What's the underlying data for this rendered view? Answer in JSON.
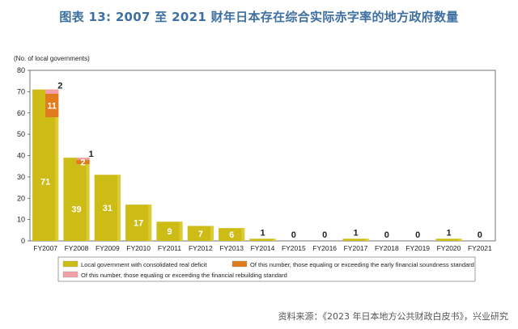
{
  "title": "图表 13: 2007 至 2021 财年日本存在综合实际赤字率的地方政府数量",
  "source": "资料来源：《2023 年日本地方公共财政白皮书》，兴业研究",
  "colors": {
    "deficit": "#cdbb16",
    "early": "#e07b1e",
    "rebuilding": "#f2a0a8",
    "title": "#3d6fa0"
  },
  "chart_data": {
    "type": "bar",
    "ylabel": "(No. of local governments)",
    "ylim": [
      0,
      80
    ],
    "yticks": [
      0,
      10,
      20,
      30,
      40,
      50,
      60,
      70,
      80
    ],
    "grid": false,
    "legend_position": "bottom",
    "categories": [
      "FY2007",
      "FY2008",
      "FY2009",
      "FY2010",
      "FY2011",
      "FY2012",
      "FY2013",
      "FY2014",
      "FY2015",
      "FY2016",
      "FY2017",
      "FY2018",
      "FY2019",
      "FY2020",
      "FY2021"
    ],
    "series": [
      {
        "name": "Local government with consolidated real deficit",
        "values": [
          71,
          39,
          31,
          17,
          9,
          7,
          6,
          1,
          0,
          0,
          1,
          0,
          0,
          1,
          0
        ]
      },
      {
        "name": "Of this number, those equaling or exceeding the early financial soundness standard",
        "values": [
          11,
          2,
          0,
          0,
          0,
          0,
          0,
          0,
          0,
          0,
          0,
          0,
          0,
          0,
          0
        ]
      },
      {
        "name": "Of this number, those equaling or exceeding the financial rebuilding standard",
        "values": [
          2,
          1,
          0,
          0,
          0,
          0,
          0,
          0,
          0,
          0,
          0,
          0,
          0,
          0,
          0
        ]
      }
    ]
  }
}
